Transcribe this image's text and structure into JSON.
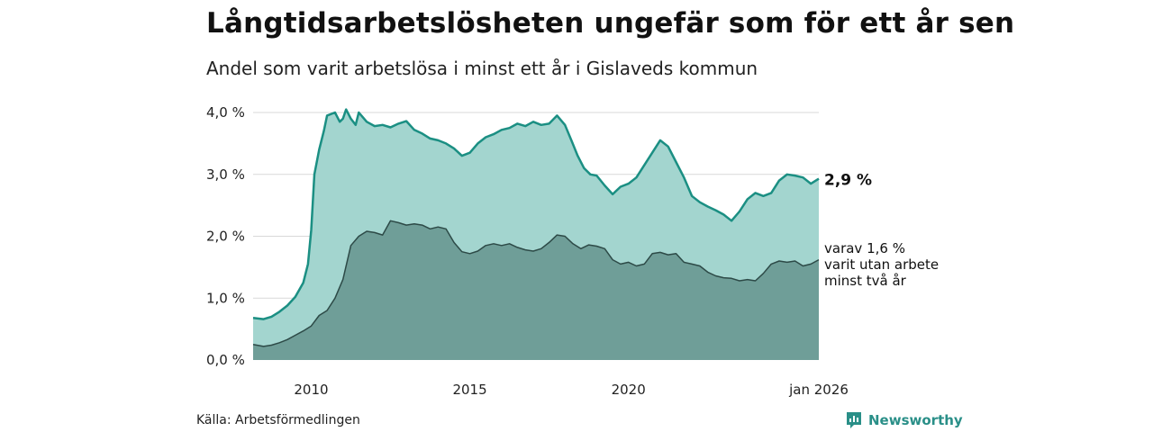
{
  "header": {
    "title": "Långtidsarbetslösheten ungefär som för ett år sen",
    "subtitle": "Andel som varit arbetslösa i minst ett år i Gislaveds kommun"
  },
  "footer": {
    "source": "Källa: Arbetsförmedlingen",
    "brand": "Newsworthy"
  },
  "colors": {
    "upper_fill": "#a3d5cf",
    "upper_line": "#1b8f83",
    "lower_fill": "#6f9e98",
    "lower_line": "#2d4a47",
    "grid": "#d9d9d9",
    "brand": "#2a8f88"
  },
  "chart_data": {
    "type": "area",
    "title": "Långtidsarbetslösheten ungefär som för ett år sen",
    "subtitle": "Andel som varit arbetslösa i minst ett år i Gislaveds kommun",
    "x_unit": "year (decimal)",
    "xlim": [
      2008.17,
      2026.0
    ],
    "ylim": [
      0,
      4.0
    ],
    "y_ticks": [
      {
        "value": 0,
        "label": "0,0 %"
      },
      {
        "value": 1,
        "label": "1,0 %"
      },
      {
        "value": 2,
        "label": "2,0 %"
      },
      {
        "value": 3,
        "label": "3,0 %"
      },
      {
        "value": 4,
        "label": "4,0 %"
      }
    ],
    "x_ticks": [
      {
        "value": 2010,
        "label": "2010"
      },
      {
        "value": 2015,
        "label": "2015"
      },
      {
        "value": 2020,
        "label": "2020"
      },
      {
        "value": 2026,
        "label": "jan 2026"
      }
    ],
    "series": [
      {
        "name": "Varit arbetslösa minst ett år",
        "end_label": "2,9 %",
        "points": [
          [
            2008.17,
            0.68
          ],
          [
            2008.5,
            0.66
          ],
          [
            2008.75,
            0.7
          ],
          [
            2009.0,
            0.78
          ],
          [
            2009.25,
            0.88
          ],
          [
            2009.5,
            1.02
          ],
          [
            2009.75,
            1.25
          ],
          [
            2009.9,
            1.55
          ],
          [
            2010.0,
            2.1
          ],
          [
            2010.1,
            3.0
          ],
          [
            2010.25,
            3.4
          ],
          [
            2010.4,
            3.7
          ],
          [
            2010.5,
            3.95
          ],
          [
            2010.75,
            4.0
          ],
          [
            2010.9,
            3.85
          ],
          [
            2011.0,
            3.9
          ],
          [
            2011.1,
            4.05
          ],
          [
            2011.25,
            3.9
          ],
          [
            2011.4,
            3.8
          ],
          [
            2011.5,
            4.0
          ],
          [
            2011.75,
            3.85
          ],
          [
            2012.0,
            3.78
          ],
          [
            2012.25,
            3.8
          ],
          [
            2012.5,
            3.76
          ],
          [
            2012.75,
            3.82
          ],
          [
            2013.0,
            3.86
          ],
          [
            2013.25,
            3.72
          ],
          [
            2013.5,
            3.66
          ],
          [
            2013.75,
            3.58
          ],
          [
            2014.0,
            3.55
          ],
          [
            2014.25,
            3.5
          ],
          [
            2014.5,
            3.42
          ],
          [
            2014.75,
            3.3
          ],
          [
            2015.0,
            3.35
          ],
          [
            2015.25,
            3.5
          ],
          [
            2015.5,
            3.6
          ],
          [
            2015.75,
            3.65
          ],
          [
            2016.0,
            3.72
          ],
          [
            2016.25,
            3.75
          ],
          [
            2016.5,
            3.82
          ],
          [
            2016.75,
            3.78
          ],
          [
            2017.0,
            3.85
          ],
          [
            2017.25,
            3.8
          ],
          [
            2017.5,
            3.82
          ],
          [
            2017.75,
            3.95
          ],
          [
            2018.0,
            3.8
          ],
          [
            2018.2,
            3.55
          ],
          [
            2018.4,
            3.3
          ],
          [
            2018.6,
            3.1
          ],
          [
            2018.8,
            3.0
          ],
          [
            2019.0,
            2.98
          ],
          [
            2019.25,
            2.82
          ],
          [
            2019.5,
            2.68
          ],
          [
            2019.75,
            2.8
          ],
          [
            2020.0,
            2.85
          ],
          [
            2020.25,
            2.95
          ],
          [
            2020.5,
            3.15
          ],
          [
            2020.75,
            3.35
          ],
          [
            2021.0,
            3.55
          ],
          [
            2021.25,
            3.45
          ],
          [
            2021.5,
            3.2
          ],
          [
            2021.75,
            2.95
          ],
          [
            2022.0,
            2.65
          ],
          [
            2022.25,
            2.55
          ],
          [
            2022.5,
            2.48
          ],
          [
            2022.75,
            2.42
          ],
          [
            2023.0,
            2.35
          ],
          [
            2023.25,
            2.25
          ],
          [
            2023.5,
            2.4
          ],
          [
            2023.75,
            2.6
          ],
          [
            2024.0,
            2.7
          ],
          [
            2024.25,
            2.65
          ],
          [
            2024.5,
            2.7
          ],
          [
            2024.75,
            2.9
          ],
          [
            2025.0,
            3.0
          ],
          [
            2025.25,
            2.98
          ],
          [
            2025.5,
            2.95
          ],
          [
            2025.75,
            2.85
          ],
          [
            2026.0,
            2.93
          ]
        ]
      },
      {
        "name": "varit utan arbete minst två år",
        "end_label_lines": [
          "varav 1,6 %",
          "varit utan arbete",
          "minst två år"
        ],
        "points": [
          [
            2008.17,
            0.25
          ],
          [
            2008.5,
            0.22
          ],
          [
            2008.75,
            0.24
          ],
          [
            2009.0,
            0.28
          ],
          [
            2009.25,
            0.33
          ],
          [
            2009.5,
            0.4
          ],
          [
            2009.75,
            0.47
          ],
          [
            2010.0,
            0.55
          ],
          [
            2010.25,
            0.72
          ],
          [
            2010.5,
            0.8
          ],
          [
            2010.75,
            1.0
          ],
          [
            2011.0,
            1.3
          ],
          [
            2011.25,
            1.85
          ],
          [
            2011.5,
            2.0
          ],
          [
            2011.75,
            2.08
          ],
          [
            2012.0,
            2.06
          ],
          [
            2012.25,
            2.02
          ],
          [
            2012.5,
            2.25
          ],
          [
            2012.75,
            2.22
          ],
          [
            2013.0,
            2.18
          ],
          [
            2013.25,
            2.2
          ],
          [
            2013.5,
            2.18
          ],
          [
            2013.75,
            2.12
          ],
          [
            2014.0,
            2.15
          ],
          [
            2014.25,
            2.12
          ],
          [
            2014.5,
            1.9
          ],
          [
            2014.75,
            1.75
          ],
          [
            2015.0,
            1.72
          ],
          [
            2015.25,
            1.76
          ],
          [
            2015.5,
            1.85
          ],
          [
            2015.75,
            1.88
          ],
          [
            2016.0,
            1.85
          ],
          [
            2016.25,
            1.88
          ],
          [
            2016.5,
            1.82
          ],
          [
            2016.75,
            1.78
          ],
          [
            2017.0,
            1.76
          ],
          [
            2017.25,
            1.8
          ],
          [
            2017.5,
            1.9
          ],
          [
            2017.75,
            2.02
          ],
          [
            2018.0,
            2.0
          ],
          [
            2018.25,
            1.88
          ],
          [
            2018.5,
            1.8
          ],
          [
            2018.75,
            1.86
          ],
          [
            2019.0,
            1.84
          ],
          [
            2019.25,
            1.8
          ],
          [
            2019.5,
            1.62
          ],
          [
            2019.75,
            1.55
          ],
          [
            2020.0,
            1.58
          ],
          [
            2020.25,
            1.52
          ],
          [
            2020.5,
            1.55
          ],
          [
            2020.75,
            1.72
          ],
          [
            2021.0,
            1.74
          ],
          [
            2021.25,
            1.7
          ],
          [
            2021.5,
            1.72
          ],
          [
            2021.75,
            1.58
          ],
          [
            2022.0,
            1.55
          ],
          [
            2022.25,
            1.52
          ],
          [
            2022.5,
            1.42
          ],
          [
            2022.75,
            1.36
          ],
          [
            2023.0,
            1.33
          ],
          [
            2023.25,
            1.32
          ],
          [
            2023.5,
            1.28
          ],
          [
            2023.75,
            1.3
          ],
          [
            2024.0,
            1.28
          ],
          [
            2024.25,
            1.4
          ],
          [
            2024.5,
            1.55
          ],
          [
            2024.75,
            1.6
          ],
          [
            2025.0,
            1.58
          ],
          [
            2025.25,
            1.6
          ],
          [
            2025.5,
            1.52
          ],
          [
            2025.75,
            1.55
          ],
          [
            2026.0,
            1.62
          ]
        ]
      }
    ]
  }
}
